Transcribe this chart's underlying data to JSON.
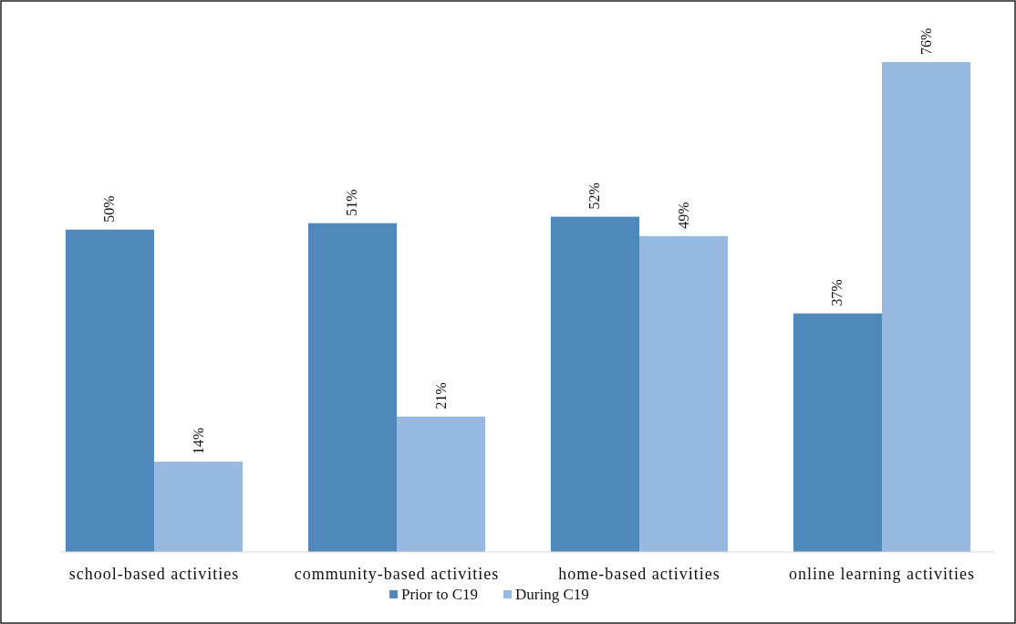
{
  "chart_data": {
    "type": "bar",
    "categories": [
      "school-based activities",
      "community-based activities",
      "home-based activities",
      "online learning activities"
    ],
    "series": [
      {
        "name": "Prior to C19",
        "color": "#4f88bb",
        "values": [
          50,
          51,
          52,
          37
        ],
        "value_labels": [
          "50%",
          "51%",
          "52%",
          "37%"
        ]
      },
      {
        "name": "During C19",
        "color": "#97b8df",
        "values": [
          14,
          21,
          49,
          76
        ],
        "value_labels": [
          "14%",
          "21%",
          "49%",
          "76%"
        ]
      }
    ],
    "legend": "bottom"
  }
}
